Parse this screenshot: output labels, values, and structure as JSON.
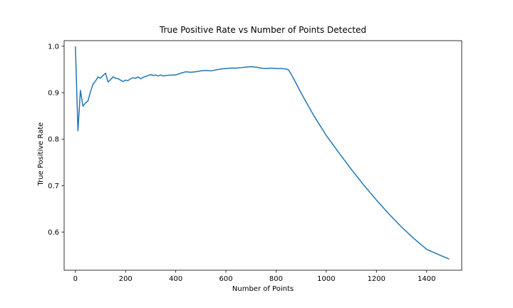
{
  "chart_data": {
    "type": "line",
    "title": "True Positive Rate vs Number of Points Detected",
    "xlabel": "Number of Points",
    "ylabel": "True Positive Rate",
    "xlim": [
      -45,
      1540
    ],
    "ylim": [
      0.518,
      1.012
    ],
    "x_ticks": [
      0,
      200,
      400,
      600,
      800,
      1000,
      1200,
      1400
    ],
    "y_ticks": [
      0.6,
      0.7,
      0.8,
      0.9,
      1.0
    ],
    "y_tick_labels": [
      "0.6",
      "0.7",
      "0.8",
      "0.9",
      "1.0"
    ],
    "grid": false,
    "line_color": "#1f77b4",
    "series": [
      {
        "x": [
          0,
          10,
          20,
          30,
          40,
          50,
          60,
          70,
          80,
          90,
          100,
          110,
          120,
          130,
          140,
          150,
          160,
          170,
          180,
          190,
          200,
          210,
          220,
          230,
          240,
          250,
          260,
          270,
          280,
          290,
          300,
          310,
          320,
          330,
          340,
          350,
          360,
          380,
          400,
          420,
          440,
          460,
          480,
          500,
          520,
          540,
          560,
          580,
          600,
          620,
          640,
          660,
          680,
          700,
          720,
          740,
          760,
          780,
          800,
          820,
          840,
          850,
          860,
          880,
          900,
          950,
          1000,
          1050,
          1100,
          1150,
          1200,
          1250,
          1300,
          1350,
          1400,
          1450,
          1490
        ],
        "y": [
          1.0,
          0.818,
          0.905,
          0.871,
          0.878,
          0.882,
          0.902,
          0.918,
          0.925,
          0.934,
          0.931,
          0.937,
          0.942,
          0.923,
          0.928,
          0.934,
          0.931,
          0.93,
          0.927,
          0.924,
          0.927,
          0.926,
          0.93,
          0.932,
          0.931,
          0.934,
          0.93,
          0.933,
          0.935,
          0.937,
          0.939,
          0.937,
          0.938,
          0.936,
          0.938,
          0.936,
          0.937,
          0.938,
          0.938,
          0.942,
          0.945,
          0.944,
          0.945,
          0.947,
          0.948,
          0.947,
          0.949,
          0.951,
          0.952,
          0.953,
          0.953,
          0.954,
          0.955,
          0.956,
          0.955,
          0.953,
          0.952,
          0.953,
          0.952,
          0.952,
          0.951,
          0.949,
          0.94,
          0.92,
          0.899,
          0.851,
          0.808,
          0.771,
          0.735,
          0.701,
          0.669,
          0.639,
          0.611,
          0.586,
          0.563,
          0.551,
          0.542
        ]
      }
    ]
  }
}
